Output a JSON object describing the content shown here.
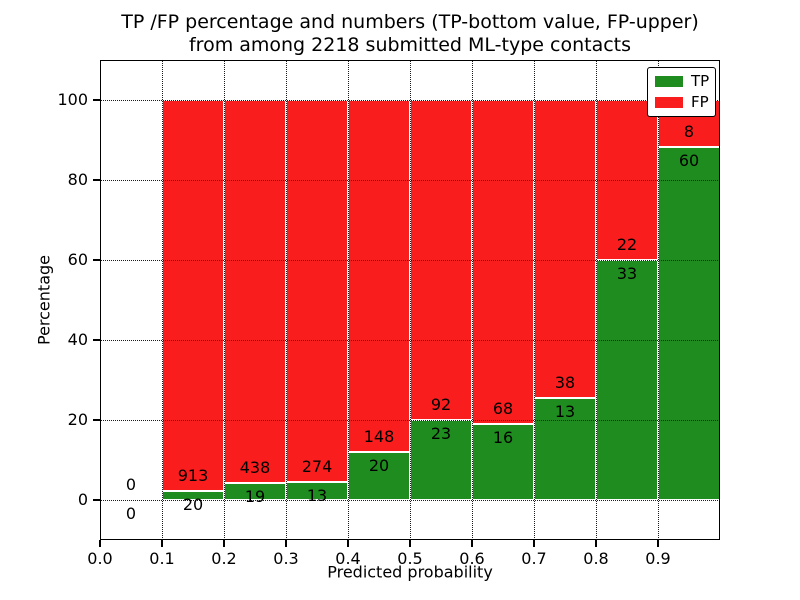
{
  "title": {
    "line1": "TP /FP percentage and numbers (TP-bottom value, FP-upper)",
    "line2": "from among 2218 submitted ML-type contacts"
  },
  "chart_data": {
    "type": "bar",
    "stacked": true,
    "normalized_to_percent": true,
    "title": "TP /FP percentage and numbers (TP-bottom value, FP-upper) from among 2218 submitted ML-type contacts",
    "xlabel": "Predicted probability",
    "ylabel": "Percentage",
    "total_submitted": 2218,
    "xlim": [
      0.0,
      1.0
    ],
    "ylim": [
      -10,
      110
    ],
    "xticks": [
      0.0,
      0.1,
      0.2,
      0.3,
      0.4,
      0.5,
      0.6,
      0.7,
      0.8,
      0.9
    ],
    "xtick_labels": [
      "0.0",
      "0.1",
      "0.2",
      "0.3",
      "0.4",
      "0.5",
      "0.6",
      "0.7",
      "0.8",
      "0.9"
    ],
    "yticks": [
      0,
      20,
      40,
      60,
      80,
      100
    ],
    "ytick_labels": [
      "0",
      "20",
      "40",
      "60",
      "80",
      "100"
    ],
    "grid": {
      "on": true,
      "style": "dotted",
      "color": "#1a1a1a"
    },
    "legend": {
      "position": "upper-right",
      "items": [
        {
          "label": "TP",
          "color": "#1E8C1E"
        },
        {
          "label": "FP",
          "color": "#FA1D1D"
        }
      ]
    },
    "bins": [
      {
        "x_start": 0.0,
        "x_end": 0.1,
        "tp": 0,
        "fp": 0,
        "tp_pct": 0.0,
        "fp_pct": 0.0
      },
      {
        "x_start": 0.1,
        "x_end": 0.2,
        "tp": 20,
        "fp": 913,
        "tp_pct": 2.1,
        "fp_pct": 97.9
      },
      {
        "x_start": 0.2,
        "x_end": 0.3,
        "tp": 19,
        "fp": 438,
        "tp_pct": 4.2,
        "fp_pct": 95.8
      },
      {
        "x_start": 0.3,
        "x_end": 0.4,
        "tp": 13,
        "fp": 274,
        "tp_pct": 4.5,
        "fp_pct": 95.5
      },
      {
        "x_start": 0.4,
        "x_end": 0.5,
        "tp": 20,
        "fp": 148,
        "tp_pct": 11.9,
        "fp_pct": 88.1
      },
      {
        "x_start": 0.5,
        "x_end": 0.6,
        "tp": 23,
        "fp": 92,
        "tp_pct": 20.0,
        "fp_pct": 80.0
      },
      {
        "x_start": 0.6,
        "x_end": 0.7,
        "tp": 16,
        "fp": 68,
        "tp_pct": 19.0,
        "fp_pct": 81.0
      },
      {
        "x_start": 0.7,
        "x_end": 0.8,
        "tp": 13,
        "fp": 38,
        "tp_pct": 25.5,
        "fp_pct": 74.5
      },
      {
        "x_start": 0.8,
        "x_end": 0.9,
        "tp": 33,
        "fp": 22,
        "tp_pct": 60.0,
        "fp_pct": 40.0
      },
      {
        "x_start": 0.9,
        "x_end": 1.0,
        "tp": 60,
        "fp": 8,
        "tp_pct": 88.2,
        "fp_pct": 11.8
      }
    ],
    "colors": {
      "tp": "#1E8C1E",
      "fp": "#FA1D1D",
      "bar_edge": "#FFFFFF",
      "frame": "#000000",
      "text": "#000000",
      "background": "#FFFFFF"
    }
  }
}
